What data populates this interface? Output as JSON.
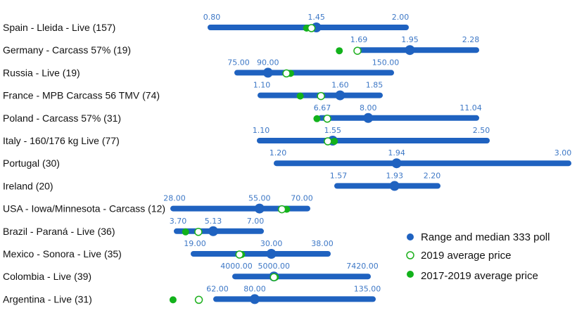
{
  "chart_data": {
    "type": "range-dot",
    "title": "",
    "colors": {
      "range": "#1f62c0",
      "avg2019_stroke": "#1db01d",
      "avg2017_2019": "#12b21b",
      "label": "#3e78c6"
    },
    "legend": [
      {
        "key": "range",
        "label": "Range and median 333 poll"
      },
      {
        "key": "avg2019",
        "label": "2019 average price"
      },
      {
        "key": "avg2017_2019",
        "label": "2017-2019 average price"
      }
    ],
    "rows": [
      {
        "label": "Spain - Lleida - Live (157)",
        "min": 0.8,
        "median": 1.45,
        "max": 2.0,
        "min_label": "0.80",
        "median_label": "1.45",
        "max_label": "2.00",
        "avg2019": 1.42,
        "avg2017_2019": 1.39
      },
      {
        "label": "Germany - Carcass 57% (19)",
        "min": 1.69,
        "median": 1.95,
        "max": 2.28,
        "min_label": "1.69",
        "median_label": "1.95",
        "max_label": "2.28",
        "avg2019": 1.69,
        "avg2017_2019": 1.6
      },
      {
        "label": "Russia - Live (19)",
        "min": 75.0,
        "median": 90.0,
        "max": 150.0,
        "min_label": "75.00",
        "median_label": "90.00",
        "max_label": "150.00",
        "avg2019": 99.0,
        "avg2017_2019": 101.0
      },
      {
        "label": "France - MPB Carcass 56 TMV (74)",
        "min": 1.1,
        "median": 1.6,
        "max": 1.85,
        "min_label": "1.10",
        "median_label": "1.60",
        "max_label": "1.85",
        "avg2019": 1.48,
        "avg2017_2019": 1.35
      },
      {
        "label": "Poland - Carcass 57% (31)",
        "min": 6.67,
        "median": 8.0,
        "max": 11.04,
        "min_label": "6.67",
        "median_label": "8.00",
        "max_label": "11.04",
        "avg2019": 6.85,
        "avg2017_2019": 6.56
      },
      {
        "label": "Italy - 160/176 kg Live (77)",
        "min": 1.1,
        "median": 1.55,
        "max": 2.5,
        "min_label": "1.10",
        "median_label": "1.55",
        "max_label": "2.50",
        "avg2019": 1.52,
        "avg2017_2019": 1.56
      },
      {
        "label": "Portugal (30)",
        "min": 1.2,
        "median": 1.94,
        "max": 3.0,
        "min_label": "1.20",
        "median_label": "1.94",
        "max_label": "3.00",
        "avg2019": null,
        "avg2017_2019": null
      },
      {
        "label": "Ireland (20)",
        "min": 1.57,
        "median": 1.93,
        "max": 2.2,
        "min_label": "1.57",
        "median_label": "1.93",
        "max_label": "2.20",
        "avg2019": null,
        "avg2017_2019": null
      },
      {
        "label": "USA - Iowa/Minnesota - Carcass (12)",
        "min": 28.0,
        "median": 55.0,
        "max": 70.0,
        "min_label": "28.00",
        "median_label": "55.00",
        "max_label": "70.00",
        "avg2019": 62.0,
        "avg2017_2019": 63.5
      },
      {
        "label": "Brazil - Paraná - Live (36)",
        "min": 3.7,
        "median": 5.13,
        "max": 7.0,
        "min_label": "3.70",
        "median_label": "5.13",
        "max_label": "7.00",
        "avg2019": 4.55,
        "avg2017_2019": 4.05
      },
      {
        "label": "Mexico - Sonora - Live (35)",
        "min": 19.0,
        "median": 30.0,
        "max": 38.0,
        "min_label": "19.00",
        "median_label": "30.00",
        "max_label": "38.00",
        "avg2019": 25.5,
        "avg2017_2019": 25.8
      },
      {
        "label": "Colombia - Live (39)",
        "min": 4000.0,
        "median": 5000.0,
        "max": 7420.0,
        "min_label": "4000.00",
        "median_label": "5000.00",
        "max_label": "7420.00",
        "avg2019": 5000.0,
        "avg2017_2019": 5040.0
      },
      {
        "label": "Argentina - Live (31)",
        "min": 62.0,
        "median": 80.0,
        "max": 135.0,
        "min_label": "62.00",
        "median_label": "80.00",
        "max_label": "135.00",
        "avg2019": 54.0,
        "avg2017_2019": 42.0
      }
    ]
  }
}
